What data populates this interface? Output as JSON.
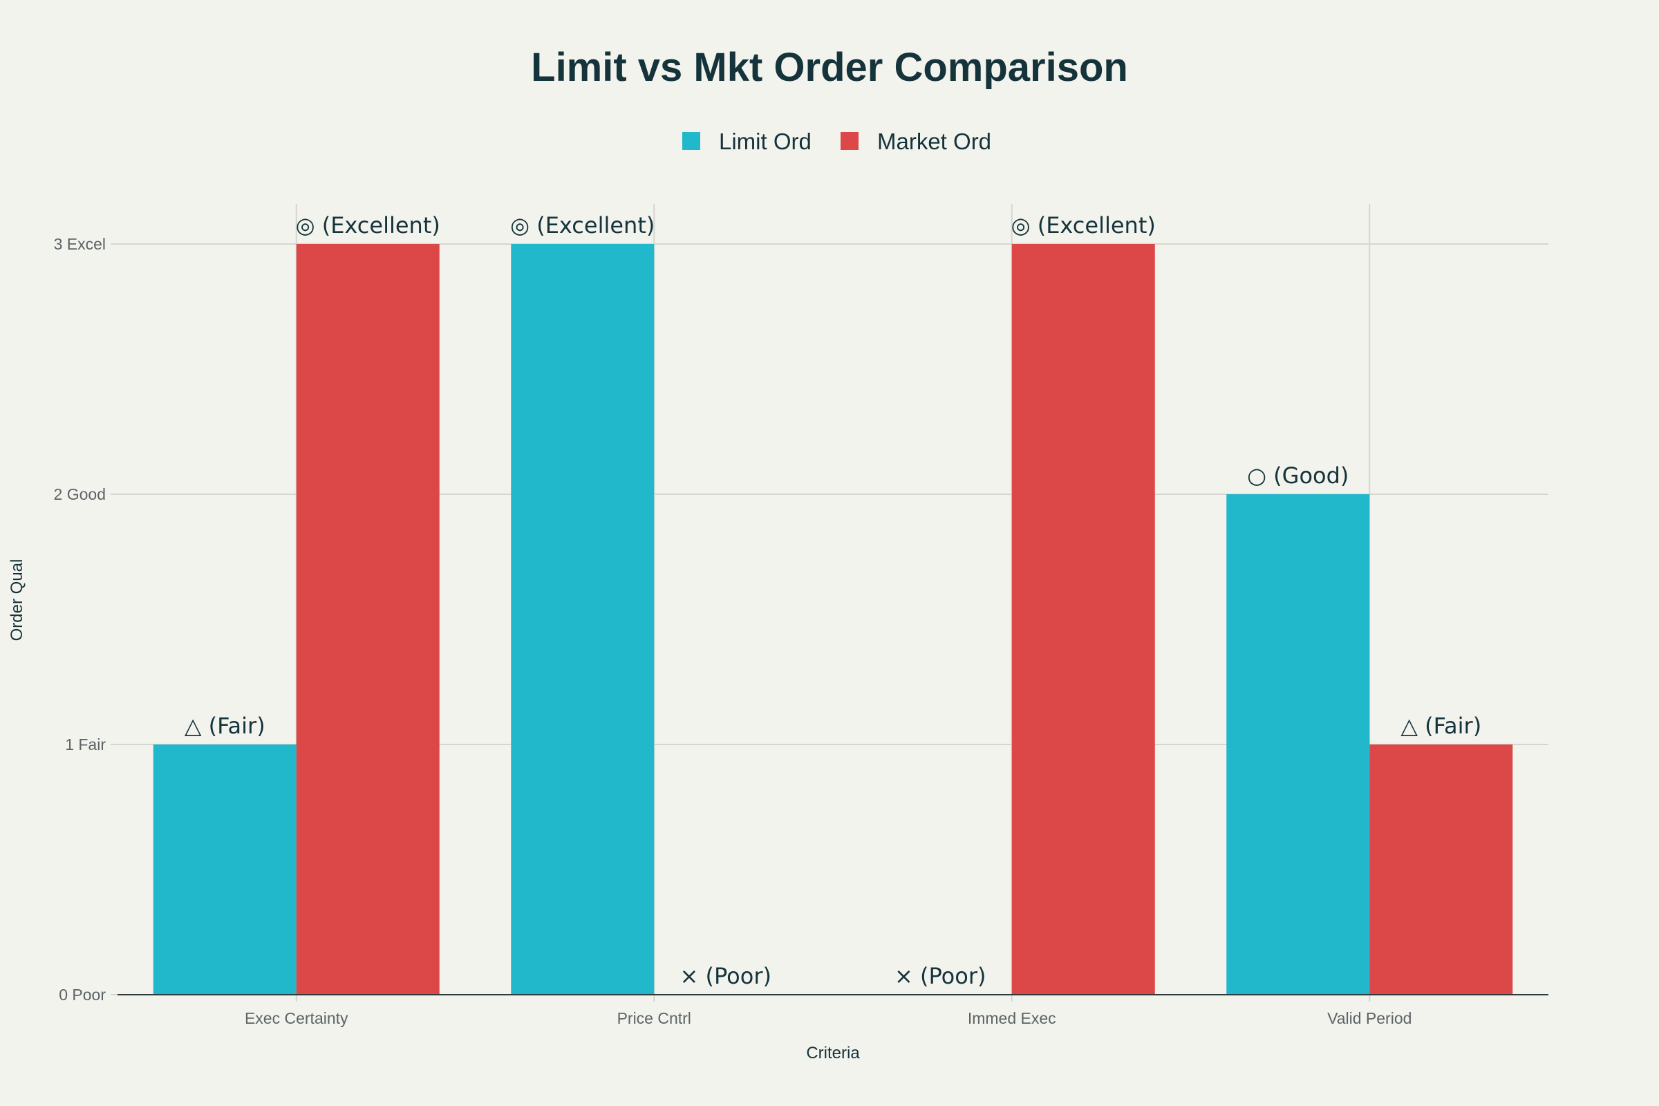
{
  "chart_data": {
    "type": "bar",
    "title": "Limit vs Mkt Order Comparison",
    "xlabel": "Criteria",
    "ylabel": "Order Qual",
    "categories": [
      "Exec Certainty",
      "Price Cntrl",
      "Immed Exec",
      "Valid Period"
    ],
    "series": [
      {
        "name": "Limit Ord",
        "color": "#21b8cc",
        "values": [
          1,
          3,
          0,
          2
        ],
        "labels": [
          "△ (Fair)",
          "◎ (Excellent)",
          "× (Poor)",
          "○ (Good)"
        ]
      },
      {
        "name": "Market Ord",
        "color": "#dc4747",
        "values": [
          3,
          0,
          3,
          1
        ],
        "labels": [
          "◎ (Excellent)",
          "× (Poor)",
          "◎ (Excellent)",
          "△ (Fair)"
        ]
      }
    ],
    "yticks": [
      {
        "value": 0,
        "label": "0 Poor"
      },
      {
        "value": 1,
        "label": "1 Fair"
      },
      {
        "value": 2,
        "label": "2 Good"
      },
      {
        "value": 3,
        "label": "3 Excel"
      }
    ],
    "ylim": [
      0,
      3
    ],
    "grid": true,
    "legend_position": "top-center"
  }
}
